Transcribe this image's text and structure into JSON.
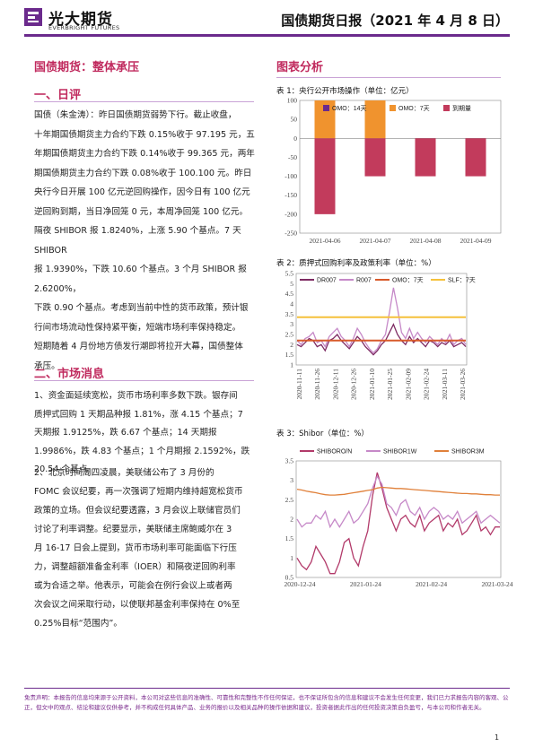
{
  "header": {
    "logo_cn": "光大期货",
    "logo_en": "EVERBRIGHT FUTURES",
    "title": "国债期货日报（2021 年 4 月 8 日）",
    "accent": "#6b2a8c"
  },
  "main_title": "国债期货：整体承压",
  "sections": {
    "ripple_heading": "一、日评",
    "ripple_text": "国债（朱金涛）：昨日国债期货弱势下行。截止收盘，\n十年期国债期货主力合约下跌 0.15%收于 97.195 元，五\n年期国债期货主力合约下跌 0.14%收于 99.365 元，两年\n期国债期货主力合约下跌 0.08%收于 100.100 元。昨日\n央行今日开展 100 亿元逆回购操作，因今日有 100 亿元\n逆回购到期，当日净回笼 0 元，本周净回笼 100 亿元。\n隔夜 SHIBOR 报 1.8240%，上涨 5.90 个基点。7 天 SHIBOR\n报 1.9390%，下跌 10.60 个基点。3 个月 SHIBOR 报 2.6200%，\n下跌 0.90 个基点。考虑到当前中性的货币政策，预计银\n行间市场流动性保持紧平衡，短端市场利率保持稳定。\n短期随着 4 月份地方债发行潮即将拉开大幕，国债整体\n承压。",
    "news_heading": "二、市场消息",
    "news_1": "1、资金面延续宽松，货币市场利率多数下跌。银存间\n质押式回购 1 天期品种报 1.81%，涨 4.15 个基点；7\n天期报 1.9125%，跌 6.67 个基点；14 天期报\n1.9986%，跌 4.83 个基点；1 个月期报 2.1592%，跌\n20.54 个基点。",
    "news_2": "      2、北京时间周四凌晨，美联储公布了 3 月份的\nFOMC 会议纪要，再一次强调了短期内维持超宽松货币\n政策的立场。但会议纪要透露，3 月会议上联储官员们\n讨论了利率调整。纪要显示，美联储主席鲍威尔在 3\n月 16-17 日会上提到，货币市场利率可能面临下行压\n力，调整超额准备金利率（IOER）和隔夜逆回购利率\n或为合适之举。他表示，可能会在例行会议上或者两\n次会议之间采取行动，以使联邦基金利率保持在 0%至\n0.25%目标“范围内”。"
  },
  "chart_section_heading": "图表分析",
  "chart_captions": [
    "表 1：央行公开市场操作（单位：亿元）",
    "表 2：质押式回购利率及政策利率（单位：%）",
    "表 3：Shibor（单位：%）"
  ],
  "chart_data": [
    {
      "type": "bar",
      "categories": [
        "2021-04-06",
        "2021-04-07",
        "2021-04-08",
        "2021-04-09"
      ],
      "series": [
        {
          "name": "OMO：14天",
          "values": [
            0,
            0,
            0,
            0
          ],
          "color": "#6b2a8c"
        },
        {
          "name": "OMO：7天",
          "values": [
            100,
            100,
            0,
            0
          ],
          "color": "#f0932e"
        },
        {
          "name": "到期量",
          "values": [
            -200,
            -100,
            -100,
            -100
          ],
          "color": "#c23b5c"
        }
      ],
      "ylim": [
        -250,
        100
      ],
      "yticks": [
        100,
        50,
        0,
        -50,
        -100,
        -150,
        -200,
        -250
      ],
      "legend": "top"
    },
    {
      "type": "line",
      "x_ticks": [
        "2020-11-11",
        "2020-11-26",
        "2020-12-11",
        "2020-12-26",
        "2021-01-10",
        "2021-01-25",
        "2021-02-09",
        "2021-02-24",
        "2021-03-11",
        "2021-03-26"
      ],
      "series": [
        {
          "name": "DR007",
          "color": "#7e2b63",
          "values": [
            2.0,
            1.9,
            2.1,
            2.3,
            2.2,
            1.9,
            2.0,
            1.7,
            2.2,
            2.3,
            2.5,
            2.2,
            2.0,
            1.8,
            2.1,
            2.4,
            2.2,
            1.9,
            1.7,
            1.5,
            1.7,
            2.0,
            2.2,
            2.6,
            3.0,
            2.5,
            2.2,
            2.0,
            2.4,
            2.1,
            2.3,
            2.1,
            1.9,
            2.2,
            2.1,
            1.9,
            2.1,
            2.0,
            2.2,
            1.9,
            2.0,
            2.1,
            1.9
          ]
        },
        {
          "name": "R007",
          "color": "#c689c8",
          "values": [
            2.2,
            2.0,
            2.3,
            2.4,
            2.6,
            2.1,
            2.2,
            1.9,
            2.4,
            2.6,
            2.8,
            2.4,
            2.2,
            1.9,
            2.3,
            2.8,
            2.5,
            2.1,
            1.8,
            1.6,
            1.8,
            2.2,
            2.5,
            3.6,
            4.8,
            3.8,
            2.6,
            2.3,
            2.8,
            2.3,
            2.6,
            2.3,
            2.1,
            2.4,
            2.2,
            2.0,
            2.3,
            2.1,
            2.5,
            2.0,
            2.2,
            2.3,
            2.0
          ]
        },
        {
          "name": "OMO：7天",
          "color": "#d85a2a",
          "values": [
            2.2,
            2.2,
            2.2,
            2.2,
            2.2,
            2.2,
            2.2,
            2.2,
            2.2,
            2.2,
            2.2,
            2.2,
            2.2,
            2.2,
            2.2,
            2.2,
            2.2,
            2.2,
            2.2,
            2.2,
            2.2,
            2.2,
            2.2,
            2.2,
            2.2,
            2.2,
            2.2,
            2.2,
            2.2,
            2.2,
            2.2,
            2.2,
            2.2,
            2.2,
            2.2,
            2.2,
            2.2,
            2.2,
            2.2,
            2.2,
            2.2,
            2.2,
            2.2
          ]
        },
        {
          "name": "SLF：7天",
          "color": "#f5c13b",
          "values": [
            3.35,
            3.35,
            3.35,
            3.35,
            3.35,
            3.35,
            3.35,
            3.35,
            3.35,
            3.35,
            3.35,
            3.35,
            3.35,
            3.35,
            3.35,
            3.35,
            3.35,
            3.35,
            3.35,
            3.35,
            3.35,
            3.35,
            3.35,
            3.35,
            3.35,
            3.35,
            3.35,
            3.35,
            3.35,
            3.35,
            3.35,
            3.35,
            3.35,
            3.35,
            3.35,
            3.35,
            3.35,
            3.35,
            3.35,
            3.35,
            3.35,
            3.35,
            3.35
          ]
        }
      ],
      "ylim": [
        1,
        5.5
      ],
      "yticks": [
        5.5,
        5,
        4.5,
        4,
        3.5,
        3,
        2.5,
        2,
        1.5,
        1
      ],
      "legend": "top"
    },
    {
      "type": "line",
      "x_ticks": [
        "2020-12-24",
        "2021-01-24",
        "2021-02-24",
        "2021-03-24"
      ],
      "series": [
        {
          "name": "SHIBORO/N",
          "color": "#b23a6a",
          "values": [
            1.0,
            0.8,
            0.7,
            0.9,
            1.3,
            1.1,
            0.9,
            0.6,
            0.6,
            0.9,
            1.4,
            1.5,
            1.0,
            0.8,
            1.3,
            1.7,
            2.6,
            3.2,
            2.8,
            2.3,
            2.0,
            1.7,
            2.0,
            2.1,
            1.9,
            1.8,
            2.1,
            1.7,
            1.9,
            2.0,
            2.1,
            1.7,
            1.9,
            1.8,
            2.0,
            1.6,
            1.7,
            1.9,
            2.1,
            1.7,
            1.8,
            1.6,
            1.8,
            1.8
          ]
        },
        {
          "name": "SHIBOR1W",
          "color": "#c689c8",
          "values": [
            2.0,
            1.8,
            1.9,
            1.9,
            2.1,
            2.0,
            2.2,
            1.8,
            2.0,
            1.8,
            2.0,
            2.2,
            1.9,
            2.0,
            2.2,
            2.4,
            2.8,
            3.1,
            2.9,
            2.4,
            2.3,
            2.1,
            2.4,
            2.5,
            2.2,
            2.1,
            2.3,
            2.0,
            2.2,
            2.3,
            2.2,
            2.0,
            2.1,
            2.0,
            2.2,
            1.9,
            2.0,
            2.1,
            2.2,
            1.9,
            2.0,
            2.1,
            2.0,
            1.9
          ]
        },
        {
          "name": "SHIBOR3M",
          "color": "#e0803a",
          "values": [
            2.77,
            2.75,
            2.72,
            2.7,
            2.68,
            2.65,
            2.63,
            2.62,
            2.62,
            2.63,
            2.64,
            2.66,
            2.68,
            2.7,
            2.72,
            2.74,
            2.76,
            2.8,
            2.82,
            2.81,
            2.8,
            2.79,
            2.79,
            2.78,
            2.77,
            2.76,
            2.75,
            2.74,
            2.73,
            2.72,
            2.71,
            2.7,
            2.69,
            2.68,
            2.67,
            2.66,
            2.66,
            2.65,
            2.65,
            2.64,
            2.63,
            2.63,
            2.62,
            2.62
          ]
        }
      ],
      "ylim": [
        0.5,
        3.5
      ],
      "yticks": [
        3.5,
        3,
        2.5,
        2,
        1.5,
        1,
        0.5
      ],
      "legend": "top"
    }
  ],
  "footer": {
    "disclaimer": "免责声明：本报告的信息均来源于公开资料，本公司对这些信息的准确性、可靠性和完整性不作任何保证，也不保证所包含的信息和建议不会发生任何变更，我们已力求报告内容的客观、公正，但文中的观点、结论和建议仅供参考，并不构成任何具体产品、业务的报价以及相关品种的操作依据和建议，投资者据此作出的任何投资决策自负盈亏，与本公司和作者无关。",
    "page_number": "1"
  }
}
